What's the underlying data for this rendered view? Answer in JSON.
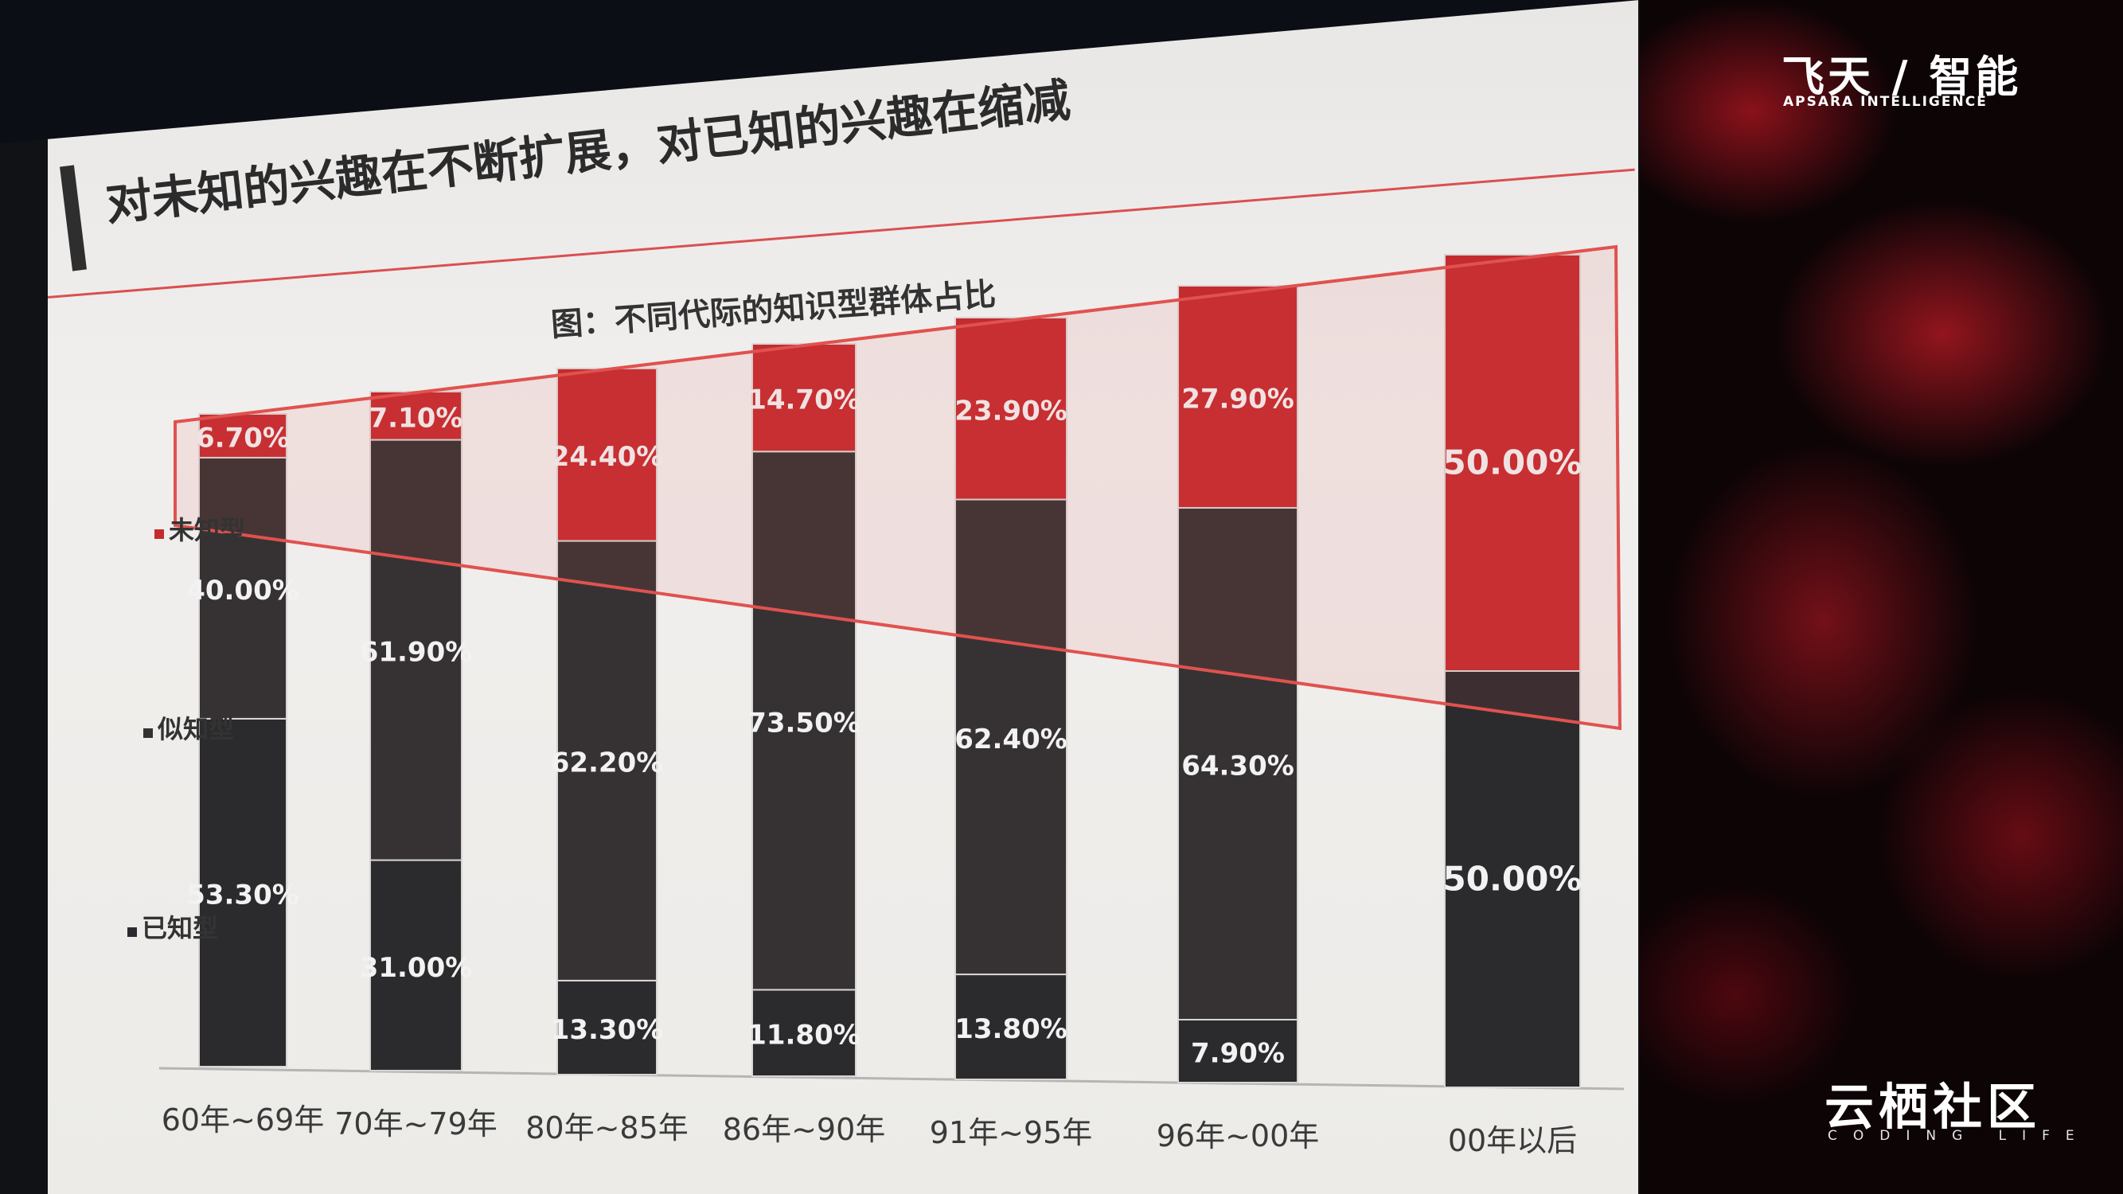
{
  "slide": {
    "title": "对未知的兴趣在不断扩展，对已知的兴趣在缩减"
  },
  "branding": {
    "top_logo": "飞天 / 智能",
    "top_logo_sub": "APSARA INTELLIGENCE",
    "bottom_logo": "云栖社区",
    "bottom_logo_sub": "CODING LIFE"
  },
  "colors": {
    "unknown": "#c42b2e",
    "semi_known": "#363233",
    "known": "#2b2b2d",
    "highlight_frame": "#e0524f"
  },
  "chart_data": {
    "type": "bar",
    "stacked": true,
    "title": "图：不同代际的知识型群体占比",
    "categories": [
      "60年~69年",
      "70年~79年",
      "80年~85年",
      "86年~90年",
      "91年~95年",
      "96年~00年",
      "00年以后"
    ],
    "series": [
      {
        "name": "已知型",
        "values": [
          53.3,
          31.0,
          13.3,
          11.8,
          13.8,
          7.9,
          50.0
        ],
        "labels": [
          "53.30%",
          "31.00%",
          "13.30%",
          "11.80%",
          "13.80%",
          "7.90%",
          "50.00%"
        ]
      },
      {
        "name": "似知型",
        "values": [
          40.0,
          61.9,
          62.2,
          73.5,
          62.4,
          64.3,
          0.0
        ],
        "labels": [
          "40.00%",
          "61.90%",
          "62.20%",
          "73.50%",
          "62.40%",
          "64.30%",
          ""
        ]
      },
      {
        "name": "未知型",
        "values": [
          6.7,
          7.1,
          24.4,
          14.7,
          23.9,
          27.9,
          50.0
        ],
        "labels": [
          "6.70%",
          "7.10%",
          "24.40%",
          "14.70%",
          "23.90%",
          "27.90%",
          "50.00%"
        ]
      }
    ],
    "ylim": [
      0,
      100
    ],
    "legend_position": "left",
    "grid": false
  }
}
